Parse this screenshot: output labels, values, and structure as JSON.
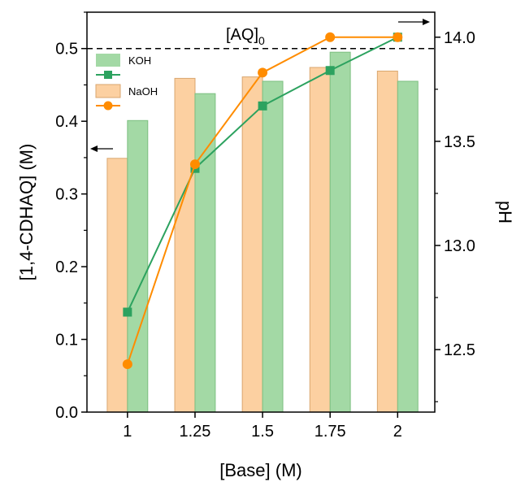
{
  "chart_data": {
    "type": "bar",
    "categories": [
      "1",
      "1.25",
      "1.5",
      "1.75",
      "2"
    ],
    "xlabel": "[Base] (M)",
    "ylabel": "[1,4-CDHAQ] (M)",
    "ylabel_right": "pH",
    "ylim": [
      0,
      0.55
    ],
    "ylim_right": [
      12.2,
      14.12
    ],
    "yticks": [
      "0.0",
      "0.1",
      "0.2",
      "0.3",
      "0.4",
      "0.5"
    ],
    "yticks_right": [
      "12.5",
      "13.0",
      "13.5",
      "14.0"
    ],
    "series": [
      {
        "name": "NaOH",
        "kind": "bar",
        "axis": "left",
        "color": "#fcd0a1",
        "stroke": "#d9a66f",
        "values": [
          0.349,
          0.459,
          0.461,
          0.474,
          0.469
        ]
      },
      {
        "name": "KOH",
        "kind": "bar",
        "axis": "left",
        "color": "#a3d9a5",
        "stroke": "#7cbf80",
        "values": [
          0.401,
          0.438,
          0.455,
          0.495,
          0.455
        ]
      },
      {
        "legend": "KOH",
        "kind": "line",
        "axis": "right",
        "marker": "square",
        "color": "#2ca25f",
        "values": [
          12.68,
          13.37,
          13.67,
          13.84,
          14.0
        ]
      },
      {
        "legend": "NaOH",
        "kind": "line",
        "axis": "right",
        "marker": "circle",
        "color": "#ff8c00",
        "values": [
          12.43,
          13.39,
          13.83,
          14.0,
          14.0
        ]
      }
    ],
    "reference_line": {
      "value": 0.5,
      "axis": "left",
      "style": "dashed",
      "label_main": "[AQ]",
      "label_sub": "0"
    },
    "legend_position": "top-left",
    "grid": false
  }
}
